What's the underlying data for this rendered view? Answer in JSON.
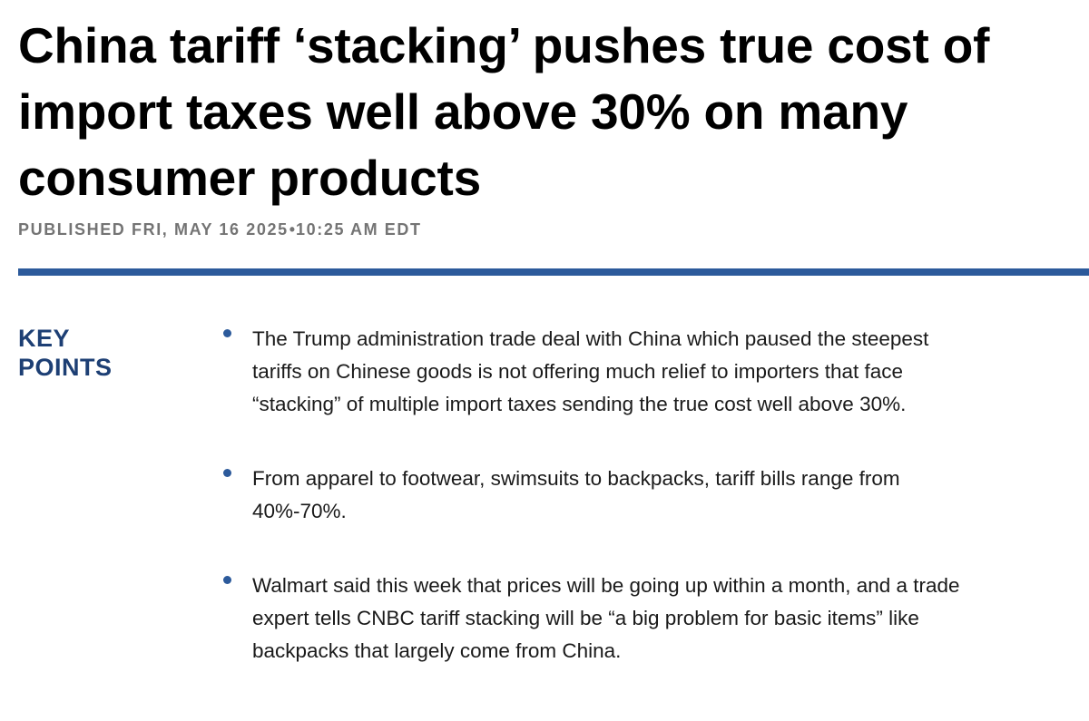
{
  "article": {
    "headline": "China tariff ‘stacking’ pushes true cost of import taxes well above 30% on many consumer products",
    "published_date": "PUBLISHED FRI, MAY 16 2025",
    "published_separator": "•",
    "published_time": "10:25 AM EDT"
  },
  "key_points": {
    "heading_line1": "KEY",
    "heading_line2": "POINTS",
    "items": [
      {
        "text": "The Trump administration trade deal with China which paused the steepest tariffs on Chinese goods is not offering much relief to importers that face “stacking” of multiple import taxes sending the true cost well above 30%."
      },
      {
        "text": "From apparel to footwear, swimsuits to backpacks, tariff bills range from 40%-70%."
      },
      {
        "text": "Walmart said this week that prices will be going up within a month, and a trade expert tells CNBC tariff stacking will be “a big problem for basic items” like backpacks that largely come from China."
      }
    ]
  },
  "colors": {
    "accent_blue": "#2c5a9b",
    "heading_navy": "#1d3f74",
    "meta_gray": "#747474"
  }
}
